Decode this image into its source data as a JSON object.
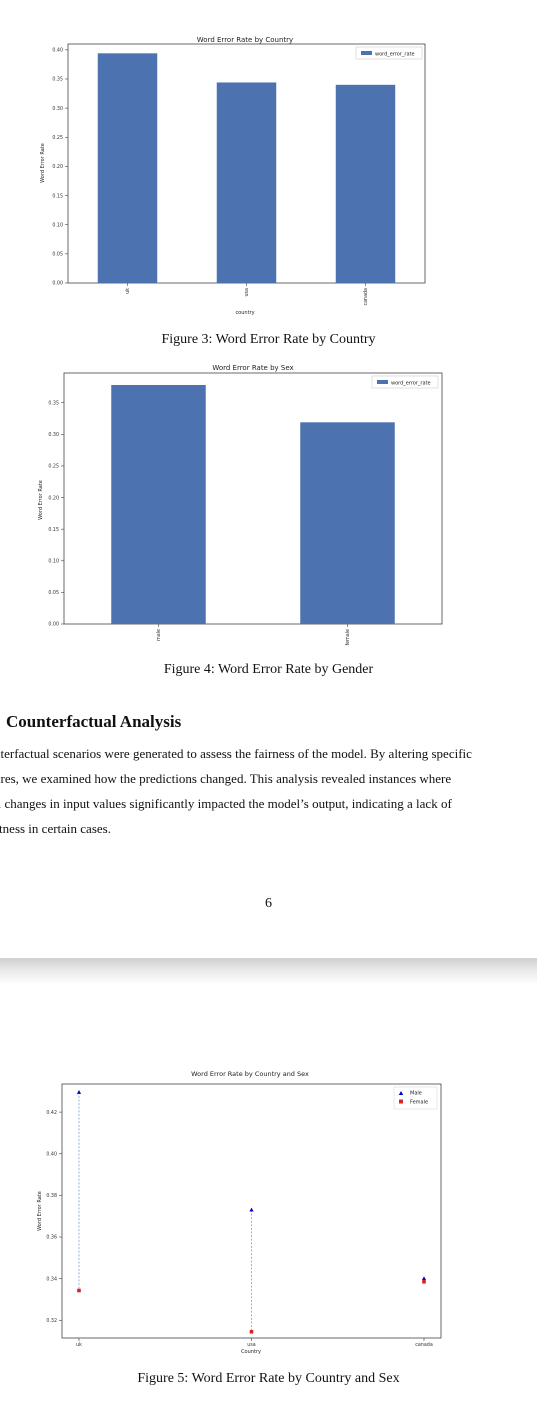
{
  "figures": {
    "fig3_caption": "Figure 3: Word Error Rate by Country",
    "fig4_caption": "Figure 4: Word Error Rate by Gender",
    "fig5_caption": "Figure 5: Word Error Rate by Country and Sex"
  },
  "section": {
    "title": "Counterfactual Analysis",
    "lines": [
      "nterfactual scenarios were generated to assess the fairness of the model. By altering specific",
      "ures, we examined how the predictions changed.  This analysis revealed instances where",
      "ll changes in input values significantly impacted the model’s output, indicating a lack of",
      "stness in certain cases."
    ]
  },
  "page_number": "6",
  "chart_data": [
    {
      "type": "bar",
      "title": "Word Error Rate by Country",
      "xlabel": "country",
      "ylabel": "Word Error Rate",
      "categories": [
        "uk",
        "usa",
        "canada"
      ],
      "series": [
        {
          "name": "word_error_rate",
          "values": [
            0.394,
            0.344,
            0.34
          ],
          "color": "#4c72b0"
        }
      ],
      "ylim": [
        0,
        0.41
      ],
      "yticks": [
        "0.00",
        "0.05",
        "0.10",
        "0.15",
        "0.20",
        "0.25",
        "0.30",
        "0.35",
        "0.40"
      ],
      "legend": "top-right",
      "grid": false
    },
    {
      "type": "bar",
      "title": "Word Error Rate by Sex",
      "xlabel": "",
      "ylabel": "Word Error Rate",
      "categories": [
        "male",
        "female"
      ],
      "series": [
        {
          "name": "word_error_rate",
          "values": [
            0.378,
            0.319
          ],
          "color": "#4c72b0"
        }
      ],
      "ylim": [
        0,
        0.397
      ],
      "yticks": [
        "0.00",
        "0.05",
        "0.10",
        "0.15",
        "0.20",
        "0.25",
        "0.30",
        "0.35"
      ],
      "legend": "top-right",
      "grid": false
    },
    {
      "type": "scatter",
      "title": "Word Error Rate by Country and Sex",
      "xlabel": "Country",
      "ylabel": "Word Error Rate",
      "categories": [
        "uk",
        "usa",
        "canada"
      ],
      "series": [
        {
          "name": "Male",
          "values": [
            0.4295,
            0.373,
            0.34
          ],
          "color": "#0000cc",
          "marker": "triangle"
        },
        {
          "name": "Female",
          "values": [
            0.3343,
            0.3145,
            0.3385
          ],
          "color": "#d62728",
          "marker": "square"
        }
      ],
      "ylim": [
        0.3115,
        0.4335
      ],
      "yticks": [
        "0.32",
        "0.34",
        "0.36",
        "0.38",
        "0.40",
        "0.42"
      ],
      "legend": "top-right",
      "grid": false
    }
  ]
}
